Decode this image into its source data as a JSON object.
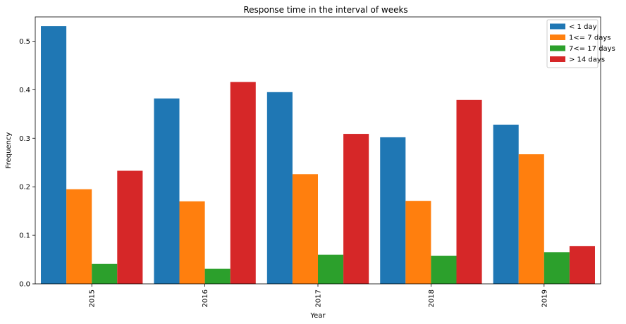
{
  "chart_data": {
    "type": "bar",
    "title": "Response time in the interval of weeks",
    "xlabel": "Year",
    "ylabel": "Frequency",
    "categories": [
      "2015",
      "2016",
      "2017",
      "2018",
      "2019"
    ],
    "ylim": [
      0,
      0.55
    ],
    "yticks": [
      0.0,
      0.1,
      0.2,
      0.3,
      0.4,
      0.5
    ],
    "ytick_labels": [
      "0.0",
      "0.1",
      "0.2",
      "0.3",
      "0.4",
      "0.5"
    ],
    "grid": false,
    "legend_position": "top-right",
    "series": [
      {
        "name": "< 1 day",
        "color": "#1f77b4",
        "values": [
          0.531,
          0.382,
          0.395,
          0.302,
          0.328
        ]
      },
      {
        "name": "1<= 7 days",
        "color": "#ff7f0e",
        "values": [
          0.195,
          0.17,
          0.226,
          0.171,
          0.267
        ]
      },
      {
        "name": "7<= 17 days",
        "color": "#2ca02c",
        "values": [
          0.041,
          0.031,
          0.06,
          0.058,
          0.065
        ]
      },
      {
        "name": "> 14 days",
        "color": "#d62728",
        "values": [
          0.233,
          0.416,
          0.309,
          0.379,
          0.078
        ]
      }
    ]
  }
}
